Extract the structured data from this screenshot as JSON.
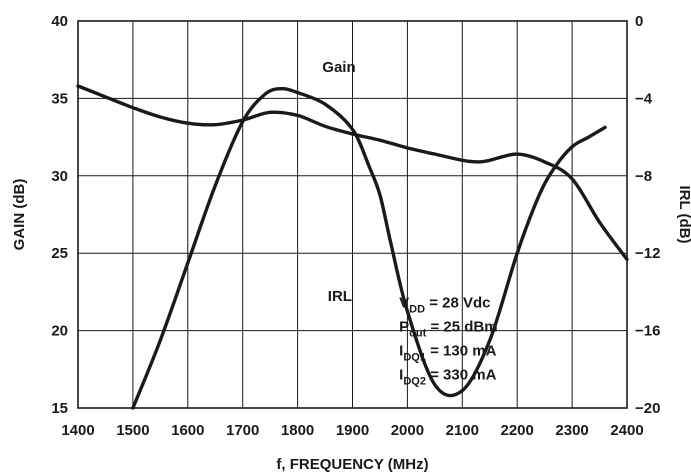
{
  "chart_data": {
    "type": "line",
    "xlabel": "f, FREQUENCY (MHz)",
    "ylabel": "GAIN (dB)",
    "y2label": "IRL (dB)",
    "xlim": [
      1400,
      2400
    ],
    "ylim": [
      15,
      40
    ],
    "y2lim": [
      -20,
      0
    ],
    "x_ticks": [
      "1400",
      "1500",
      "1600",
      "1700",
      "1800",
      "1900",
      "2000",
      "2100",
      "2200",
      "2300",
      "2400"
    ],
    "y_ticks": [
      "15",
      "20",
      "25",
      "30",
      "35",
      "40"
    ],
    "y2_ticks": [
      "-20",
      "-16",
      "-12",
      "-8",
      "-4",
      "0"
    ],
    "grid": true,
    "series": [
      {
        "name": "Gain",
        "axis": "left",
        "x": [
          1400,
          1450,
          1500,
          1550,
          1600,
          1650,
          1700,
          1750,
          1800,
          1850,
          1900,
          1950,
          2000,
          2050,
          2100,
          2130,
          2150,
          2200,
          2250,
          2300,
          2350,
          2400
        ],
        "values": [
          35.8,
          35.1,
          34.4,
          33.8,
          33.4,
          33.3,
          33.6,
          34.1,
          33.9,
          33.2,
          32.7,
          32.3,
          31.8,
          31.4,
          31.0,
          30.9,
          31.0,
          31.4,
          30.9,
          29.8,
          27.0,
          24.6
        ]
      },
      {
        "name": "IRL",
        "axis": "right",
        "x": [
          1500,
          1550,
          1600,
          1650,
          1700,
          1740,
          1770,
          1800,
          1850,
          1900,
          1930,
          1950,
          1970,
          2000,
          2050,
          2100,
          2150,
          2200,
          2240,
          2270,
          2300,
          2330,
          2360
        ],
        "values": [
          -20,
          -16.5,
          -12.5,
          -8.5,
          -5.2,
          -3.8,
          -3.5,
          -3.7,
          -4.3,
          -5.6,
          -7.5,
          -9.0,
          -11.5,
          -15.0,
          -18.8,
          -19.1,
          -16.5,
          -12.0,
          -9.0,
          -7.5,
          -6.5,
          -6.0,
          -5.5
        ]
      }
    ],
    "annotations": {
      "gain_label": "Gain",
      "irl_label": "IRL",
      "conditions": [
        {
          "main": "V",
          "sub": "DD",
          "rest": " = 28 Vdc"
        },
        {
          "main": "P",
          "sub": "out",
          "rest": " = 25 dBm"
        },
        {
          "main": "I",
          "sub": "DQ1",
          "rest": " = 130 mA"
        },
        {
          "main": "I",
          "sub": "DQ2",
          "rest": " = 330 mA"
        }
      ]
    }
  }
}
